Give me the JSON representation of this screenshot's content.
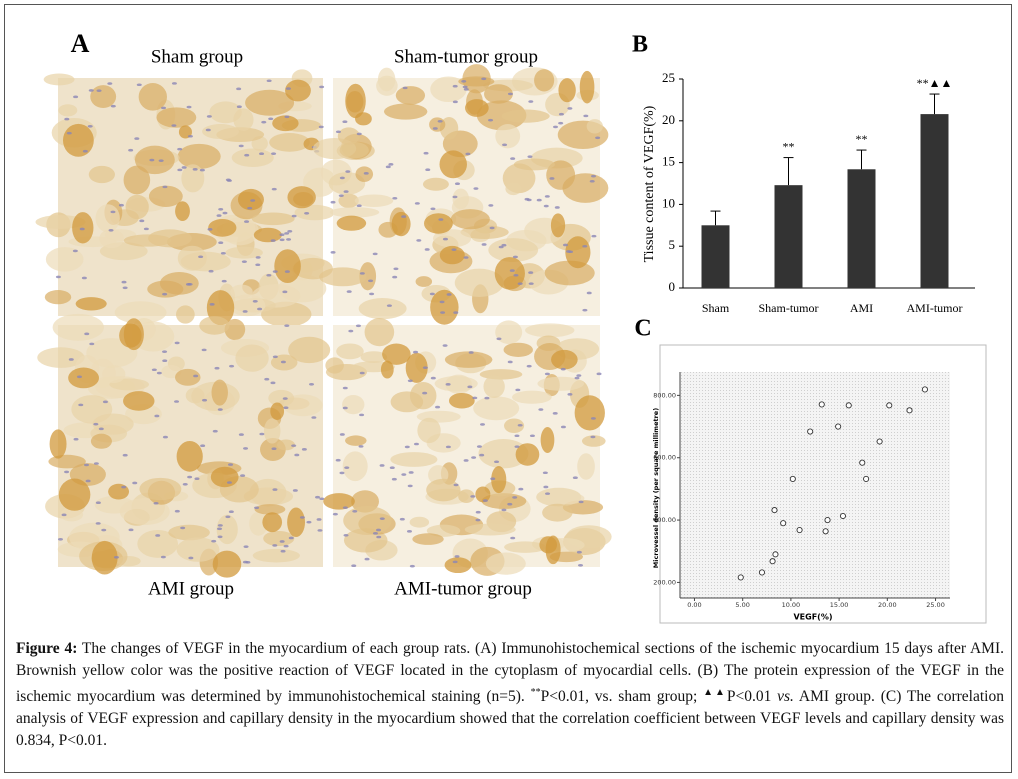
{
  "panels": {
    "A": {
      "letter": "A",
      "labels": [
        "Sham group",
        "Sham-tumor group",
        "AMI group",
        "AMI-tumor group"
      ]
    },
    "B": {
      "letter": "B"
    },
    "C": {
      "letter": "C"
    }
  },
  "chart_data": [
    {
      "type": "bar",
      "ylabel": "Tissue content of VEGF(%)",
      "categories": [
        "Sham",
        "Sham-tumor",
        "AMI",
        "AMI-tumor"
      ],
      "values": [
        7.5,
        12.3,
        14.2,
        20.8
      ],
      "errors": [
        1.7,
        3.3,
        2.3,
        2.4
      ],
      "annotations": [
        null,
        "**",
        "**",
        "**▲▲"
      ],
      "color": "#333333",
      "ylim": [
        0,
        25
      ],
      "yticks": [
        0,
        5,
        10,
        15,
        20,
        25
      ]
    },
    {
      "type": "scatter",
      "xlabel": "VEGF(%)",
      "ylabel": "Microvessel density (per square millimetre)",
      "x": [
        4.8,
        7.0,
        8.1,
        8.4,
        8.3,
        9.2,
        10.2,
        10.9,
        12.0,
        13.2,
        13.6,
        13.8,
        14.9,
        15.4,
        16.0,
        17.4,
        17.8,
        19.2,
        20.2,
        22.3,
        23.9
      ],
      "values": [
        216,
        232,
        268,
        290,
        432,
        390,
        532,
        368,
        684,
        771,
        364,
        400,
        700,
        413,
        768,
        584,
        532,
        652,
        768,
        752,
        819
      ],
      "color": "#333333",
      "xlim": [
        -1.5,
        26.5
      ],
      "ylim": [
        150,
        875
      ],
      "xticks": [
        {
          "value": 0,
          "label": "0.00"
        },
        {
          "value": 5,
          "label": "5.00"
        },
        {
          "value": 10,
          "label": "10.00"
        },
        {
          "value": 15,
          "label": "15.00"
        },
        {
          "value": 20,
          "label": "20.00"
        },
        {
          "value": 25,
          "label": "25.00"
        }
      ],
      "yticks": [
        {
          "value": 200,
          "label": "200.00"
        },
        {
          "value": 400,
          "label": "400.00"
        },
        {
          "value": 600,
          "label": "600.00"
        },
        {
          "value": 800,
          "label": "800.00"
        }
      ]
    }
  ],
  "caption": {
    "label": "Figure 4:",
    "parts": [
      " The changes of VEGF in the myocardium of each group rats. (A) Immunohistochemical sections of the ischemic myocardium 15 days after AMI. Brownish yellow color was the positive reaction of VEGF located in the cytoplasm of myocardial cells. (B) The protein expression of the VEGF in the ischemic myocardium was determined by immunohistochemical staining (n=5). ",
      "**",
      "P<0.01, vs. sham group; ",
      "▲▲",
      "P<0.01 ",
      "vs.",
      " AMI group. (C) The correlation analysis of VEGF expression and capillary density in the myocardium showed that the correlation coefficient between VEGF levels and capillary density was 0.834, P<0.01."
    ]
  }
}
